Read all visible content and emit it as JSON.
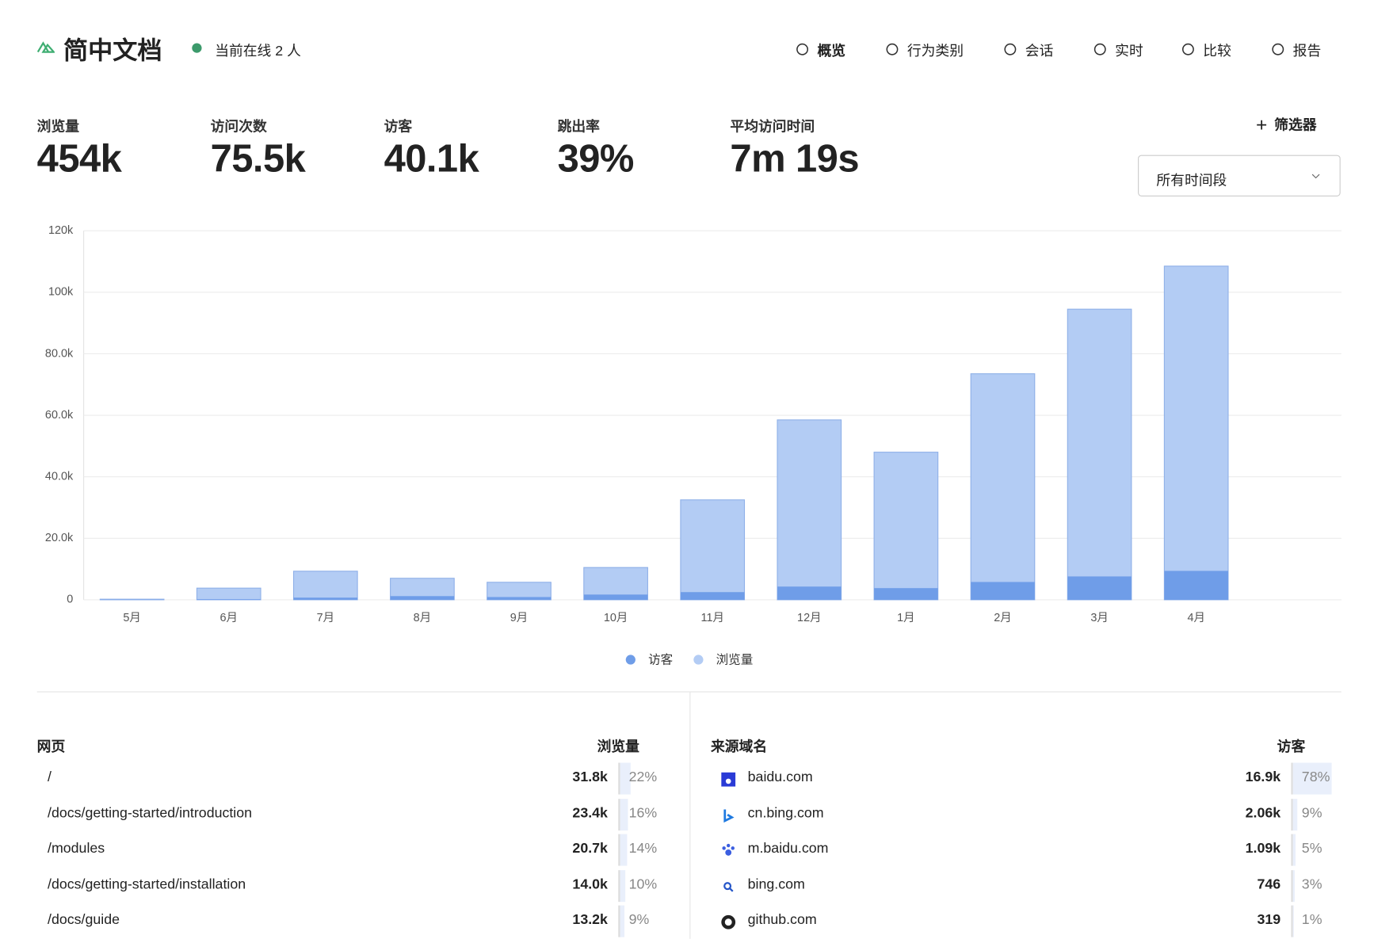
{
  "header": {
    "site": "简中文档",
    "online": "当前在线 2 人",
    "nav": [
      "概览",
      "行为类别",
      "会话",
      "实时",
      "比较",
      "报告"
    ]
  },
  "stats": [
    {
      "label": "浏览量",
      "value": "454k"
    },
    {
      "label": "访问次数",
      "value": "75.5k"
    },
    {
      "label": "访客",
      "value": "40.1k"
    },
    {
      "label": "跳出率",
      "value": "39%"
    },
    {
      "label": "平均访问时间",
      "value": "7m 19s"
    }
  ],
  "filter_button": "筛选器",
  "date_range": "所有时间段",
  "chart_data": {
    "type": "bar",
    "categories": [
      "5月",
      "6月",
      "7月",
      "8月",
      "9月",
      "10月",
      "11月",
      "12月",
      "1月",
      "2月",
      "3月",
      "4月"
    ],
    "series": [
      {
        "name": "访客",
        "color": "#6f9de8",
        "values": [
          50,
          200,
          700,
          1200,
          900,
          1700,
          2500,
          4300,
          3800,
          5800,
          7600,
          9400
        ]
      },
      {
        "name": "浏览量",
        "color": "#b3ccf4",
        "values": [
          200,
          3800,
          9300,
          7000,
          5700,
          10500,
          32500,
          58500,
          48000,
          73500,
          94500,
          108500
        ]
      }
    ],
    "ylim": [
      0,
      120000
    ],
    "yticks": [
      0,
      {
        "value": 20000,
        "label": "20.0k"
      },
      {
        "value": 40000,
        "label": "40.0k"
      },
      {
        "value": 60000,
        "label": "60.0k"
      },
      {
        "value": 80000,
        "label": "80.0k"
      },
      {
        "value": 100000,
        "label": "100k"
      },
      {
        "value": 120000,
        "label": "120k"
      }
    ],
    "grid": true,
    "legend": "bottom"
  },
  "pages": {
    "title": "网页",
    "metric": "浏览量",
    "rows": [
      {
        "name": "/",
        "value": "31.8k",
        "share": 22,
        "share_label": "22%"
      },
      {
        "name": "/docs/getting-started/introduction",
        "value": "23.4k",
        "share": 16,
        "share_label": "16%"
      },
      {
        "name": "/modules",
        "value": "20.7k",
        "share": 14,
        "share_label": "14%"
      },
      {
        "name": "/docs/getting-started/installation",
        "value": "14.0k",
        "share": 10,
        "share_label": "10%"
      },
      {
        "name": "/docs/guide",
        "value": "13.2k",
        "share": 9,
        "share_label": "9%"
      }
    ]
  },
  "referrers": {
    "title": "来源域名",
    "metric": "访客",
    "rows": [
      {
        "name": "baidu.com",
        "value": "16.9k",
        "share": 78,
        "share_label": "78%"
      },
      {
        "name": "cn.bing.com",
        "value": "2.06k",
        "share": 9,
        "share_label": "9%"
      },
      {
        "name": "m.baidu.com",
        "value": "1.09k",
        "share": 5,
        "share_label": "5%"
      },
      {
        "name": "bing.com",
        "value": "746",
        "share": 3,
        "share_label": "3%"
      },
      {
        "name": "github.com",
        "value": "319",
        "share": 1,
        "share_label": "1%"
      }
    ]
  }
}
